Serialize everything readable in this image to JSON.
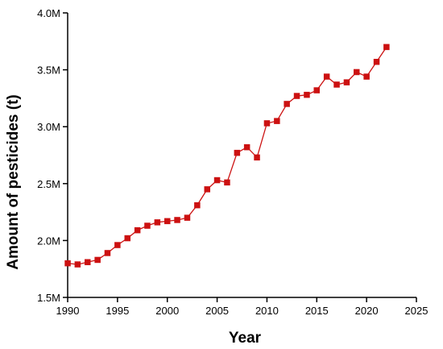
{
  "chart_data": {
    "type": "line",
    "xlabel": "Year",
    "ylabel": "Amount of pesticides (t)",
    "xlim": [
      1990,
      2025
    ],
    "ylim": [
      1.5,
      4.0
    ],
    "x_ticks": [
      1990,
      1995,
      2000,
      2005,
      2010,
      2015,
      2020,
      2025
    ],
    "y_ticks": [
      {
        "value": 1.5,
        "label": "1.5M"
      },
      {
        "value": 2.0,
        "label": "2.0M"
      },
      {
        "value": 2.5,
        "label": "2.5M"
      },
      {
        "value": 3.0,
        "label": "3.0M"
      },
      {
        "value": 3.5,
        "label": "3.5M"
      },
      {
        "value": 4.0,
        "label": "4.0M"
      }
    ],
    "y_unit": "M",
    "grid": false,
    "marker": "square",
    "color": "#cc1111",
    "series": [
      {
        "x": [
          1990,
          1991,
          1992,
          1993,
          1994,
          1995,
          1996,
          1997,
          1998,
          1999,
          2000,
          2001,
          2002,
          2003,
          2004,
          2005,
          2006,
          2007,
          2008,
          2009,
          2010,
          2011,
          2012,
          2013,
          2014,
          2015,
          2016,
          2017,
          2018,
          2019,
          2020,
          2021,
          2022
        ],
        "values": [
          1.8,
          1.79,
          1.81,
          1.83,
          1.89,
          1.96,
          2.02,
          2.09,
          2.13,
          2.16,
          2.17,
          2.18,
          2.2,
          2.31,
          2.45,
          2.53,
          2.51,
          2.77,
          2.82,
          2.73,
          3.03,
          3.05,
          3.2,
          3.27,
          3.28,
          3.32,
          3.44,
          3.37,
          3.39,
          3.48,
          3.44,
          3.57,
          3.7
        ]
      }
    ]
  }
}
